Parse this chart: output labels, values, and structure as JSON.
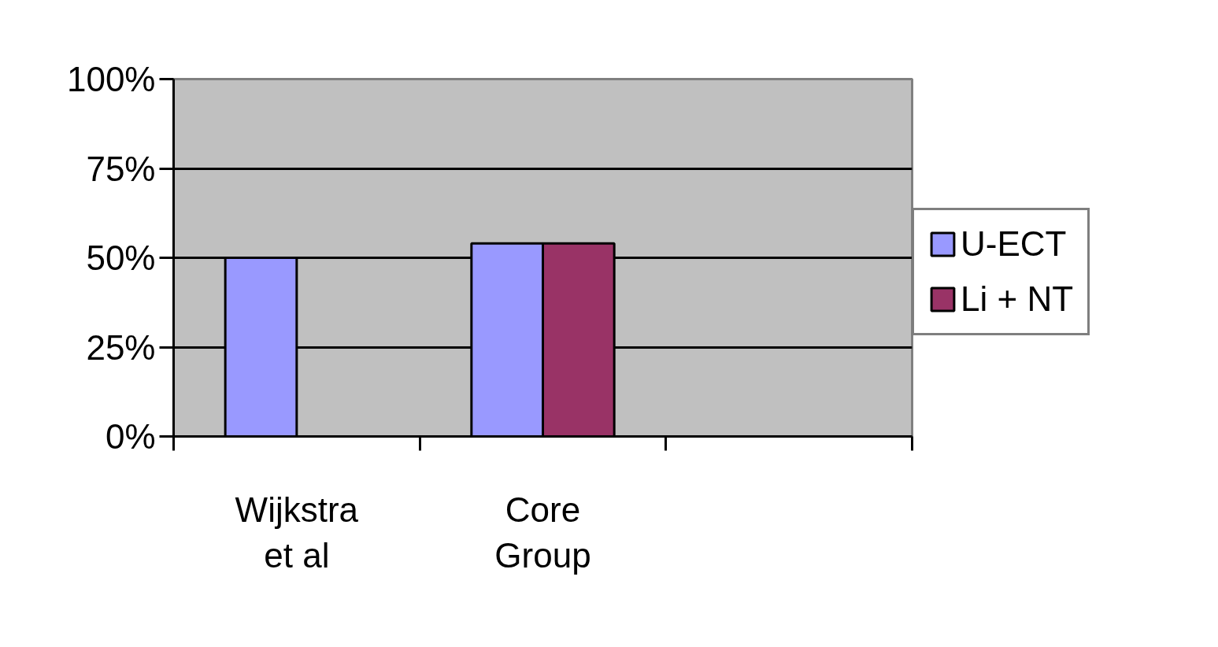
{
  "chart_data": {
    "type": "bar",
    "categories": [
      "Wijkstra et al",
      "Core Group",
      null
    ],
    "series": [
      {
        "name": "U-ECT",
        "color": "#9999ff",
        "values": [
          50,
          54,
          null
        ]
      },
      {
        "name": "Li + NT",
        "color": "#993366",
        "values": [
          null,
          54,
          null
        ]
      }
    ],
    "ylim": [
      0,
      100
    ],
    "yticks": [
      {
        "value": 0,
        "label": "0%"
      },
      {
        "value": 25,
        "label": "25%"
      },
      {
        "value": 50,
        "label": "50%"
      },
      {
        "value": 75,
        "label": "75%"
      },
      {
        "value": 100,
        "label": "100%"
      }
    ],
    "grid": "y",
    "legend": "right"
  }
}
